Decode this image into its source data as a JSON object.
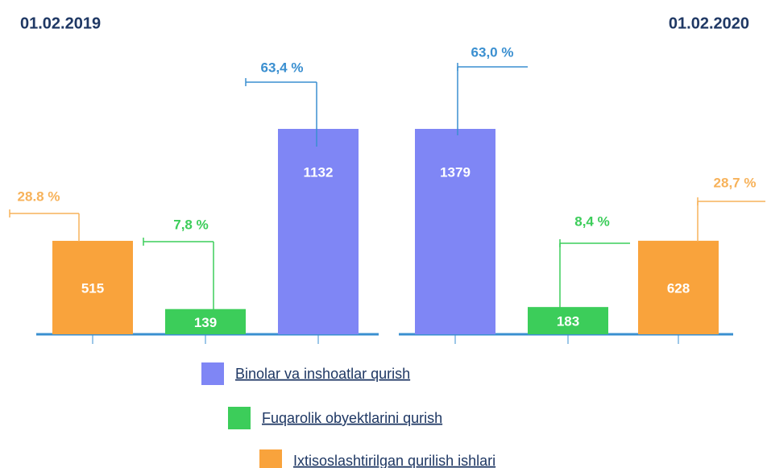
{
  "legend": {
    "entries": [
      {
        "name": "Binolar va inshoatlar qurish",
        "color": "#7f86f5"
      },
      {
        "name": "Fuqarolik obyektlarini qurish",
        "color": "#3ccd5a"
      },
      {
        "name": "Ixtisoslashtirilgan qurilish ishlari",
        "color": "#f9a33c"
      }
    ]
  },
  "chart_data": [
    {
      "type": "bar",
      "title": "01.02.2019",
      "bars": [
        {
          "value": 515,
          "share": 28.8,
          "share_label": "28.8 %",
          "color": "#f9a33c",
          "label_color": "#f7b25a"
        },
        {
          "value": 139,
          "share": 7.8,
          "share_label": "7,8 %",
          "color": "#3ccd5a",
          "label_color": "#3ccd5a"
        },
        {
          "value": 1132,
          "share": 63.4,
          "share_label": "63,4 %",
          "color": "#7f86f5",
          "label_color": "#3a8fd0"
        }
      ]
    },
    {
      "type": "bar",
      "title": "01.02.2020",
      "bars": [
        {
          "value": 1379,
          "share": 63.0,
          "share_label": "63,0 %",
          "color": "#7f86f5",
          "label_color": "#3a8fd0"
        },
        {
          "value": 183,
          "share": 8.4,
          "share_label": "8,4 %",
          "color": "#3ccd5a",
          "label_color": "#3ccd5a"
        },
        {
          "value": 628,
          "share": 28.7,
          "share_label": "28,7 %",
          "color": "#f9a33c",
          "label_color": "#f7b25a"
        }
      ]
    }
  ]
}
